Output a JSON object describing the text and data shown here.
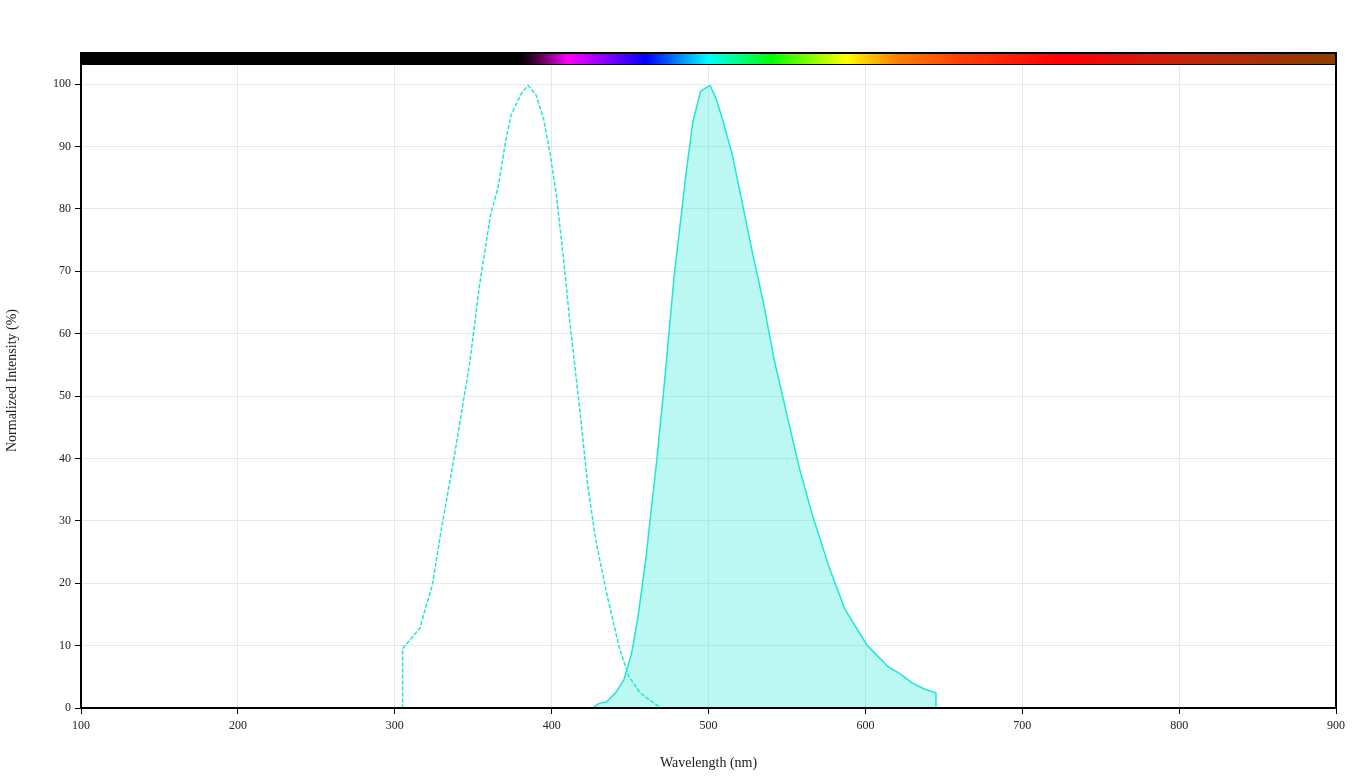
{
  "chart_data": {
    "type": "line",
    "xlabel": "Wavelength (nm)",
    "ylabel": "Normalized Intensity (%)",
    "xlim": [
      100,
      900
    ],
    "xticks": [
      100,
      200,
      300,
      400,
      500,
      600,
      700,
      800,
      900
    ],
    "ylim": [
      0,
      105
    ],
    "yticks": [
      0,
      10,
      20,
      30,
      40,
      50,
      60,
      70,
      80,
      90,
      100
    ],
    "grid": true,
    "legend": false,
    "marker": "none",
    "series": [
      {
        "color": "#1ee8d3",
        "line_style": "dashed",
        "x": [
          305,
          305,
          316,
          324,
          330,
          338,
          348,
          354,
          361,
          366,
          370,
          374,
          377,
          381,
          385,
          390,
          395,
          399,
          403,
          408,
          412,
          418,
          423,
          428,
          435,
          443,
          449,
          456,
          463,
          468
        ],
        "values": [
          0,
          9.5,
          12.8,
          19.8,
          29.1,
          40.4,
          55.7,
          67.7,
          79,
          83.6,
          89.9,
          94.9,
          96.6,
          98.6,
          99.8,
          98.3,
          94.3,
          88.9,
          82.3,
          71,
          61,
          47.7,
          35.7,
          27.1,
          18.5,
          9.8,
          5.2,
          2.5,
          1.2,
          0.3
        ]
      },
      {
        "type": "area",
        "color": "#1ee8d3",
        "line_style": "solid",
        "x": [
          426,
          430,
          435,
          441,
          446,
          451,
          455,
          460,
          467,
          472,
          478,
          486,
          490,
          495,
          501,
          505,
          509,
          515,
          521,
          528,
          535,
          542,
          550,
          558,
          566,
          577,
          587,
          601,
          606,
          615,
          622,
          630,
          638,
          645,
          645
        ],
        "values": [
          0,
          0.7,
          1,
          2.5,
          4.5,
          8.8,
          14.5,
          23.8,
          39.7,
          52.4,
          69,
          86.3,
          93.9,
          98.9,
          99.8,
          97.6,
          94.3,
          88.9,
          81.6,
          73,
          65,
          55.7,
          47,
          38.4,
          31.1,
          22.5,
          15.8,
          10.1,
          8.8,
          6.5,
          5.5,
          4,
          3,
          2.4,
          0
        ]
      }
    ]
  }
}
